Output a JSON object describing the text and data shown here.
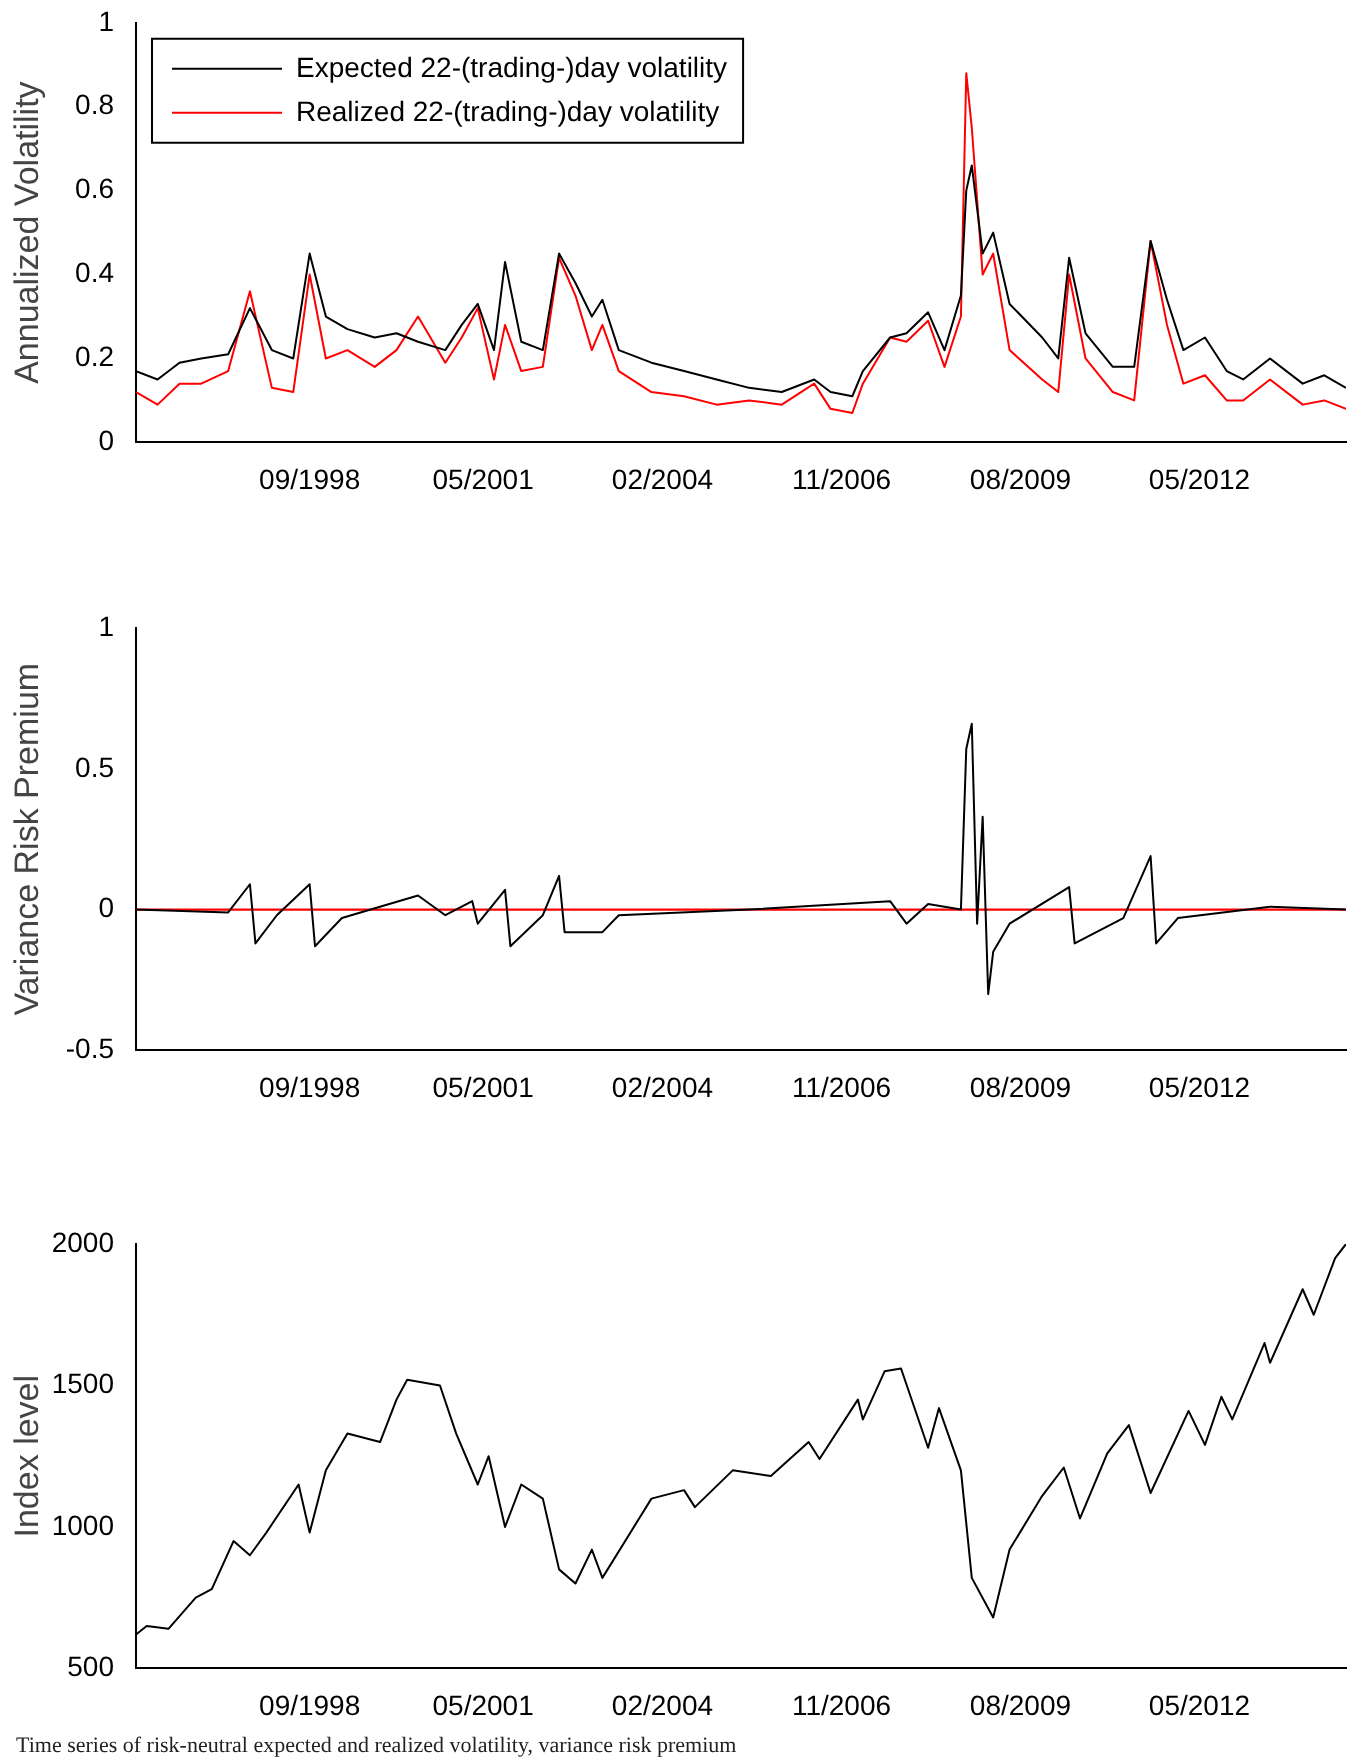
{
  "chart_data": [
    {
      "type": "line",
      "ylabel": "Annualized Volatility",
      "xlim": [
        "1996-01",
        "2014-08"
      ],
      "ylim": [
        0,
        1
      ],
      "yticks": [
        0,
        0.2,
        0.4,
        0.6,
        0.8,
        1
      ],
      "xticks": [
        {
          "value": "1998-09",
          "label": "09/1998"
        },
        {
          "value": "2001-05",
          "label": "05/2001"
        },
        {
          "value": "2004-02",
          "label": "02/2004"
        },
        {
          "value": "2006-11",
          "label": "11/2006"
        },
        {
          "value": "2009-08",
          "label": "08/2009"
        },
        {
          "value": "2012-05",
          "label": "05/2012"
        }
      ],
      "x": [
        "1996-01",
        "1996-05",
        "1996-09",
        "1997-01",
        "1997-06",
        "1997-10",
        "1998-02",
        "1998-06",
        "1998-09",
        "1998-12",
        "1999-04",
        "1999-09",
        "2000-01",
        "2000-05",
        "2000-10",
        "2001-01",
        "2001-04",
        "2001-07",
        "2001-09",
        "2001-12",
        "2002-04",
        "2002-07",
        "2002-10",
        "2003-01",
        "2003-03",
        "2003-06",
        "2003-12",
        "2004-06",
        "2004-12",
        "2005-06",
        "2005-12",
        "2006-06",
        "2006-09",
        "2007-01",
        "2007-03",
        "2007-08",
        "2007-11",
        "2008-03",
        "2008-06",
        "2008-09",
        "2008-10",
        "2008-11",
        "2009-01",
        "2009-03",
        "2009-06",
        "2009-12",
        "2010-03",
        "2010-05",
        "2010-08",
        "2011-01",
        "2011-05",
        "2011-08",
        "2011-11",
        "2012-02",
        "2012-06",
        "2012-10",
        "2013-01",
        "2013-06",
        "2013-12",
        "2014-04",
        "2014-08"
      ],
      "series": [
        {
          "name": "Expected 22-(trading-)day volatility",
          "color": "#000000",
          "values": [
            0.17,
            0.15,
            0.19,
            0.2,
            0.21,
            0.32,
            0.22,
            0.2,
            0.45,
            0.3,
            0.27,
            0.25,
            0.26,
            0.24,
            0.22,
            0.28,
            0.33,
            0.22,
            0.43,
            0.24,
            0.22,
            0.45,
            0.38,
            0.3,
            0.34,
            0.22,
            0.19,
            0.17,
            0.15,
            0.13,
            0.12,
            0.15,
            0.12,
            0.11,
            0.17,
            0.25,
            0.26,
            0.31,
            0.22,
            0.35,
            0.6,
            0.66,
            0.45,
            0.5,
            0.33,
            0.25,
            0.2,
            0.44,
            0.26,
            0.18,
            0.18,
            0.48,
            0.34,
            0.22,
            0.25,
            0.17,
            0.15,
            0.2,
            0.14,
            0.16,
            0.13
          ]
        },
        {
          "name": "Realized 22-(trading-)day volatility",
          "color": "#ff0000",
          "values": [
            0.12,
            0.09,
            0.14,
            0.14,
            0.17,
            0.36,
            0.13,
            0.12,
            0.4,
            0.2,
            0.22,
            0.18,
            0.22,
            0.3,
            0.19,
            0.25,
            0.32,
            0.15,
            0.28,
            0.17,
            0.18,
            0.44,
            0.35,
            0.22,
            0.28,
            0.17,
            0.12,
            0.11,
            0.09,
            0.1,
            0.09,
            0.14,
            0.08,
            0.07,
            0.14,
            0.25,
            0.24,
            0.29,
            0.18,
            0.3,
            0.88,
            0.75,
            0.4,
            0.45,
            0.22,
            0.15,
            0.12,
            0.4,
            0.2,
            0.12,
            0.1,
            0.48,
            0.28,
            0.14,
            0.16,
            0.1,
            0.1,
            0.15,
            0.09,
            0.1,
            0.08
          ]
        }
      ],
      "legend": "top left",
      "grid": false
    },
    {
      "type": "line",
      "ylabel": "Variance Risk Premium",
      "xlim": [
        "1996-01",
        "2014-08"
      ],
      "ylim": [
        -0.5,
        1
      ],
      "yticks": [
        -0.5,
        0,
        0.5,
        1
      ],
      "xticks": [
        {
          "value": "1998-09",
          "label": "09/1998"
        },
        {
          "value": "2001-05",
          "label": "05/2001"
        },
        {
          "value": "2004-02",
          "label": "02/2004"
        },
        {
          "value": "2006-11",
          "label": "11/2006"
        },
        {
          "value": "2009-08",
          "label": "08/2009"
        },
        {
          "value": "2012-05",
          "label": "05/2012"
        }
      ],
      "x": [
        "1996-01",
        "1997-06",
        "1997-10",
        "1997-11",
        "1998-03",
        "1998-09",
        "1998-10",
        "1999-03",
        "2000-05",
        "2000-10",
        "2001-03",
        "2001-04",
        "2001-09",
        "2001-10",
        "2002-04",
        "2002-07",
        "2002-08",
        "2003-03",
        "2003-06",
        "2005-06",
        "2007-08",
        "2007-11",
        "2008-03",
        "2008-09",
        "2008-10",
        "2008-11",
        "2008-12",
        "2009-01",
        "2009-02",
        "2009-03",
        "2009-06",
        "2010-05",
        "2010-06",
        "2011-03",
        "2011-08",
        "2011-09",
        "2012-01",
        "2013-06",
        "2014-08"
      ],
      "series": [
        {
          "color": "#000000",
          "values": [
            0,
            -0.01,
            0.09,
            -0.12,
            -0.02,
            0.09,
            -0.13,
            -0.03,
            0.05,
            -0.02,
            0.03,
            -0.05,
            0.07,
            -0.13,
            -0.02,
            0.12,
            -0.08,
            -0.08,
            -0.02,
            0,
            0.03,
            -0.05,
            0.02,
            0,
            0.57,
            0.66,
            -0.05,
            0.33,
            -0.3,
            -0.15,
            -0.05,
            0.08,
            -0.12,
            -0.03,
            0.19,
            -0.12,
            -0.03,
            0.01,
            0
          ]
        }
      ],
      "ref_lines": [
        {
          "axis": "y",
          "value": 0,
          "color": "#ff0000"
        }
      ],
      "grid": false
    },
    {
      "type": "line",
      "ylabel": "Index level",
      "xlim": [
        "1996-01",
        "2014-08"
      ],
      "ylim": [
        500,
        2000
      ],
      "yticks": [
        500,
        1000,
        1500,
        2000
      ],
      "xticks": [
        {
          "value": "1998-09",
          "label": "09/1998"
        },
        {
          "value": "2001-05",
          "label": "05/2001"
        },
        {
          "value": "2004-02",
          "label": "02/2004"
        },
        {
          "value": "2006-11",
          "label": "11/2006"
        },
        {
          "value": "2009-08",
          "label": "08/2009"
        },
        {
          "value": "2012-05",
          "label": "05/2012"
        }
      ],
      "x": [
        "1996-01",
        "1996-03",
        "1996-07",
        "1996-12",
        "1997-03",
        "1997-07",
        "1997-10",
        "1998-01",
        "1998-07",
        "1998-09",
        "1998-12",
        "1999-04",
        "1999-10",
        "2000-01",
        "2000-03",
        "2000-09",
        "2000-12",
        "2001-04",
        "2001-06",
        "2001-09",
        "2001-12",
        "2002-04",
        "2002-07",
        "2002-10",
        "2003-01",
        "2003-03",
        "2003-12",
        "2004-06",
        "2004-08",
        "2005-03",
        "2005-10",
        "2006-05",
        "2006-07",
        "2007-02",
        "2007-03",
        "2007-07",
        "2007-10",
        "2008-03",
        "2008-05",
        "2008-09",
        "2008-11",
        "2009-03",
        "2009-06",
        "2009-12",
        "2010-04",
        "2010-07",
        "2010-12",
        "2011-04",
        "2011-08",
        "2012-03",
        "2012-06",
        "2012-09",
        "2012-11",
        "2013-05",
        "2013-06",
        "2013-12",
        "2014-02",
        "2014-06",
        "2014-08"
      ],
      "series": [
        {
          "color": "#000000",
          "values": [
            620,
            650,
            640,
            750,
            780,
            950,
            900,
            980,
            1150,
            980,
            1200,
            1330,
            1300,
            1450,
            1520,
            1500,
            1330,
            1150,
            1250,
            1000,
            1150,
            1100,
            850,
            800,
            920,
            820,
            1100,
            1130,
            1070,
            1200,
            1180,
            1300,
            1240,
            1450,
            1380,
            1550,
            1560,
            1280,
            1420,
            1200,
            820,
            680,
            920,
            1110,
            1210,
            1030,
            1260,
            1360,
            1120,
            1410,
            1290,
            1460,
            1380,
            1650,
            1580,
            1840,
            1750,
            1950,
            2000
          ]
        }
      ],
      "grid": false,
      "annotations": [
        "Time series of risk-neutral expected and realized volatility, variance risk premium"
      ]
    }
  ]
}
